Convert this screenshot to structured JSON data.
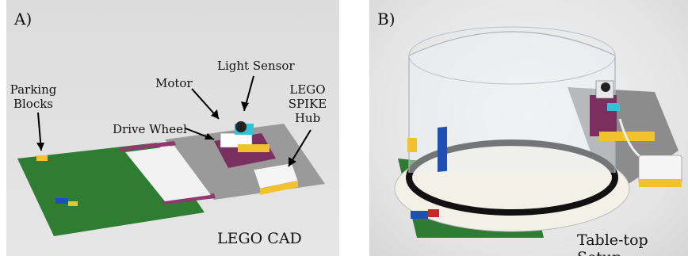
{
  "panel_a": {
    "label": "A)",
    "caption": "LEGO CAD",
    "annotations": {
      "parking_line1": "Parking",
      "parking_line2": "Blocks",
      "motor": "Motor",
      "light_sensor": "Light Sensor",
      "hub_line1": "LEGO",
      "hub_line2": "SPIKE",
      "hub_line3": "Hub",
      "drive_wheel": "Drive Wheel"
    }
  },
  "panel_b": {
    "label": "B)",
    "caption": "Table-top Setup"
  },
  "colors": {
    "baseplate_green": "#2e7d32",
    "baseplate_gray": "#9e9e9e",
    "track_magenta": "#8e3a6e",
    "hub_yellow": "#f2c12e",
    "sensor_cyan": "#35c0d8"
  }
}
